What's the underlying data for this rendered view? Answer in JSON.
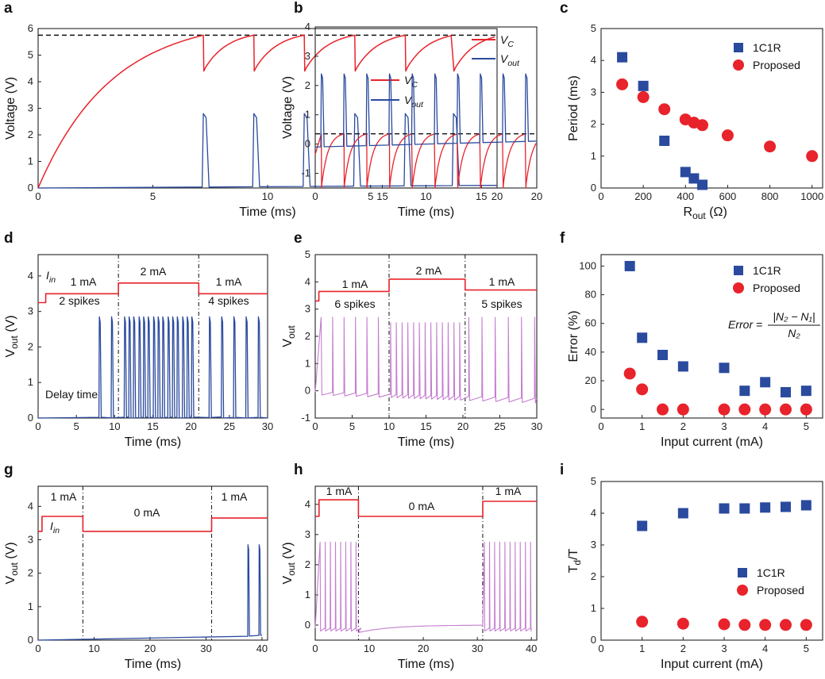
{
  "chart_data": [
    {
      "panel": "a",
      "type": "line",
      "xlabel": "Time (ms)",
      "ylabel": "Voltage (V)",
      "xlim": [
        0,
        20
      ],
      "ylim": [
        0,
        6
      ],
      "xticks": [
        "0",
        "5",
        "10",
        "15",
        "20"
      ],
      "yticks": [
        "0",
        "1",
        "2",
        "3",
        "4",
        "5",
        "6"
      ],
      "threshold_dashed": 5.75,
      "vc": {
        "rise_end_t": 7.2,
        "peak": 5.75,
        "reset": 4.4,
        "spike_times": [
          7.2,
          9.4,
          11.6,
          13.8,
          16.0,
          18.1
        ],
        "end_value": 5.5
      },
      "vout": {
        "spike_times": [
          7.2,
          9.4,
          11.6,
          13.8,
          16.0,
          18.1
        ],
        "spike_peak": 2.8,
        "baseline_end": 0.1
      },
      "legend": [
        {
          "label": "V_C",
          "color": "#e8232b"
        },
        {
          "label": "V_out",
          "color": "#2a4a9e"
        }
      ]
    },
    {
      "panel": "b",
      "type": "line",
      "xlabel": "Time (ms)",
      "ylabel": "Voltage (V)",
      "xlim": [
        0,
        20
      ],
      "ylim": [
        -1.5,
        4
      ],
      "xticks": [
        "0",
        "5",
        "10",
        "15",
        "20"
      ],
      "yticks": [
        "-1",
        "0",
        "1",
        "2",
        "3",
        "4"
      ],
      "threshold_dashed": 0.35,
      "vc": {
        "period": 2.05,
        "first_spike": 0.55,
        "peak": 0.35,
        "reset": -1.5
      },
      "vout": {
        "period": 2.05,
        "first_spike": 0.55,
        "spike_peak": 2.4,
        "baseline": -0.1
      },
      "legend": [
        {
          "label": "V_C",
          "color": "#e8232b"
        },
        {
          "label": "V_out",
          "color": "#2a4a9e"
        }
      ]
    },
    {
      "panel": "c",
      "type": "scatter",
      "xlabel": "R_out (Ω)",
      "ylabel": "Period (ms)",
      "xlim": [
        0,
        1050
      ],
      "ylim": [
        0,
        5
      ],
      "xticks": [
        "0",
        "200",
        "400",
        "600",
        "800",
        "1000"
      ],
      "yticks": [
        "0",
        "1",
        "2",
        "3",
        "4",
        "5"
      ],
      "series": [
        {
          "name": "1C1R",
          "marker": "square",
          "color": "#2a4a9e",
          "x": [
            100,
            200,
            300,
            400,
            440,
            480
          ],
          "y": [
            4.1,
            3.2,
            1.48,
            0.5,
            0.3,
            0.1
          ]
        },
        {
          "name": "Proposed",
          "marker": "circle",
          "color": "#e8232b",
          "x": [
            100,
            200,
            300,
            400,
            440,
            480,
            600,
            800,
            1000
          ],
          "y": [
            3.25,
            2.85,
            2.47,
            2.15,
            2.05,
            1.97,
            1.65,
            1.3,
            1.0
          ]
        }
      ]
    },
    {
      "panel": "d",
      "type": "line",
      "xlabel": "Time (ms)",
      "ylabel": "V_out (V)",
      "xlim": [
        0,
        30
      ],
      "ylim": [
        0,
        4.6
      ],
      "xticks": [
        "0",
        "5",
        "10",
        "15",
        "20",
        "25",
        "30"
      ],
      "yticks": [
        "0",
        "1",
        "2",
        "3",
        "4"
      ],
      "vlines": [
        10.5,
        21
      ],
      "iin_levels": [
        {
          "t": [
            0,
            1
          ],
          "v": 3.25
        },
        {
          "t": [
            1,
            10.5
          ],
          "v": 3.5
        },
        {
          "t": [
            10.5,
            21
          ],
          "v": 3.8
        },
        {
          "t": [
            21,
            30
          ],
          "v": 3.5
        }
      ],
      "spike_times": [
        8,
        9.6,
        11.3,
        11.9,
        12.5,
        13.2,
        13.8,
        14.4,
        15.1,
        15.7,
        16.3,
        17.0,
        17.6,
        18.2,
        18.9,
        19.5,
        20.1,
        22.4,
        24.0,
        25.6,
        27.2,
        28.8
      ],
      "spike_peak": 2.85,
      "annotations": {
        "iin": "I_in",
        "seg1": "1 mA",
        "seg2": "2 mA",
        "seg3": "1 mA",
        "count1": "2 spikes",
        "count3": "4 spikes",
        "delay": "Delay time"
      }
    },
    {
      "panel": "e",
      "type": "line",
      "xlabel": "Time (ms)",
      "ylabel": "V_out (V)",
      "xlim": [
        0,
        30
      ],
      "ylim": [
        -1,
        5
      ],
      "xticks": [
        "0",
        "5",
        "10",
        "15",
        "20",
        "25",
        "30"
      ],
      "yticks": [
        "-1",
        "0",
        "1",
        "2",
        "3",
        "4",
        "5"
      ],
      "vlines": [
        10,
        20.3
      ],
      "iin_levels": [
        {
          "t": [
            0,
            0.5
          ],
          "v": 3.3
        },
        {
          "t": [
            0.5,
            10
          ],
          "v": 3.65
        },
        {
          "t": [
            10,
            20.3
          ],
          "v": 4.1
        },
        {
          "t": [
            20.3,
            30
          ],
          "v": 3.7
        }
      ],
      "period": 1.55,
      "mid_period": 0.78,
      "spike_peak": 2.7,
      "annotations": {
        "seg1": "1 mA",
        "seg2": "2 mA",
        "seg3": "1 mA",
        "count1": "6 spikes",
        "count3": "5 spikes"
      }
    },
    {
      "panel": "f",
      "type": "scatter",
      "xlabel": "Input current (mA)",
      "ylabel": "Error (%)",
      "xlim": [
        0,
        5.4
      ],
      "ylim": [
        -6,
        108
      ],
      "xticks": [
        "0",
        "1",
        "2",
        "3",
        "4",
        "5"
      ],
      "yticks": [
        "0",
        "20",
        "40",
        "60",
        "80",
        "100"
      ],
      "series": [
        {
          "name": "1C1R",
          "marker": "square",
          "color": "#2a4a9e",
          "x": [
            0.7,
            1,
            1.5,
            2,
            3,
            3.5,
            4,
            4.5,
            5
          ],
          "y": [
            100,
            50,
            38,
            30,
            29,
            13,
            19,
            12,
            13
          ]
        },
        {
          "name": "Proposed",
          "marker": "circle",
          "color": "#e8232b",
          "x": [
            0.7,
            1,
            1.5,
            2,
            3,
            3.5,
            4,
            4.5,
            5
          ],
          "y": [
            25,
            14,
            0,
            0,
            0,
            0,
            0,
            0,
            0
          ]
        }
      ],
      "formula": {
        "lhs": "Error =",
        "numerator": "|N₂ − N₁|",
        "denominator": "N₂"
      }
    },
    {
      "panel": "g",
      "type": "line",
      "xlabel": "Time (ms)",
      "ylabel": "V_out (V)",
      "xlim": [
        0,
        41
      ],
      "ylim": [
        0,
        4.6
      ],
      "xticks": [
        "0",
        "10",
        "20",
        "30",
        "40"
      ],
      "yticks": [
        "0",
        "1",
        "2",
        "3",
        "4"
      ],
      "vlines": [
        8,
        31
      ],
      "iin_levels": [
        {
          "t": [
            0,
            0.7
          ],
          "v": 3.25
        },
        {
          "t": [
            0.7,
            8
          ],
          "v": 3.7
        },
        {
          "t": [
            8,
            31
          ],
          "v": 3.25
        },
        {
          "t": [
            31,
            41
          ],
          "v": 3.65
        }
      ],
      "spike_times": [
        37.5,
        39.5
      ],
      "spike_peak": 2.85,
      "annotations": {
        "seg1": "1 mA",
        "seg2": "0 mA",
        "seg3": "1 mA",
        "iin": "I_in"
      }
    },
    {
      "panel": "h",
      "type": "line",
      "xlabel": "Time (ms)",
      "ylabel": "V_out (V)",
      "xlim": [
        0,
        41
      ],
      "ylim": [
        -0.5,
        4.6
      ],
      "xticks": [
        "0",
        "10",
        "20",
        "30",
        "40"
      ],
      "yticks": [
        "0",
        "1",
        "2",
        "3",
        "4"
      ],
      "vlines": [
        8,
        31
      ],
      "iin_levels": [
        {
          "t": [
            0,
            0.7
          ],
          "v": 3.6
        },
        {
          "t": [
            0.7,
            8
          ],
          "v": 4.15
        },
        {
          "t": [
            8,
            31
          ],
          "v": 3.6
        },
        {
          "t": [
            31,
            41
          ],
          "v": 4.1
        }
      ],
      "period": 0.95,
      "spike_peak": 2.75,
      "annotations": {
        "seg1": "1 mA",
        "seg2": "0 mA",
        "seg3": "1 mA"
      }
    },
    {
      "panel": "i",
      "type": "scatter",
      "xlabel": "Input current (mA)",
      "ylabel": "T_d/T",
      "xlim": [
        0,
        5.4
      ],
      "ylim": [
        0,
        5
      ],
      "xticks": [
        "0",
        "1",
        "2",
        "3",
        "4",
        "5"
      ],
      "yticks": [
        "0",
        "1",
        "2",
        "3",
        "4",
        "5"
      ],
      "series": [
        {
          "name": "1C1R",
          "marker": "square",
          "color": "#2a4a9e",
          "x": [
            1,
            2,
            3,
            3.5,
            4,
            4.5,
            5
          ],
          "y": [
            3.6,
            4.0,
            4.15,
            4.15,
            4.18,
            4.2,
            4.25
          ]
        },
        {
          "name": "Proposed",
          "marker": "circle",
          "color": "#e8232b",
          "x": [
            1,
            2,
            3,
            3.5,
            4,
            4.5,
            5
          ],
          "y": [
            0.58,
            0.52,
            0.5,
            0.48,
            0.48,
            0.48,
            0.48
          ]
        }
      ]
    }
  ]
}
